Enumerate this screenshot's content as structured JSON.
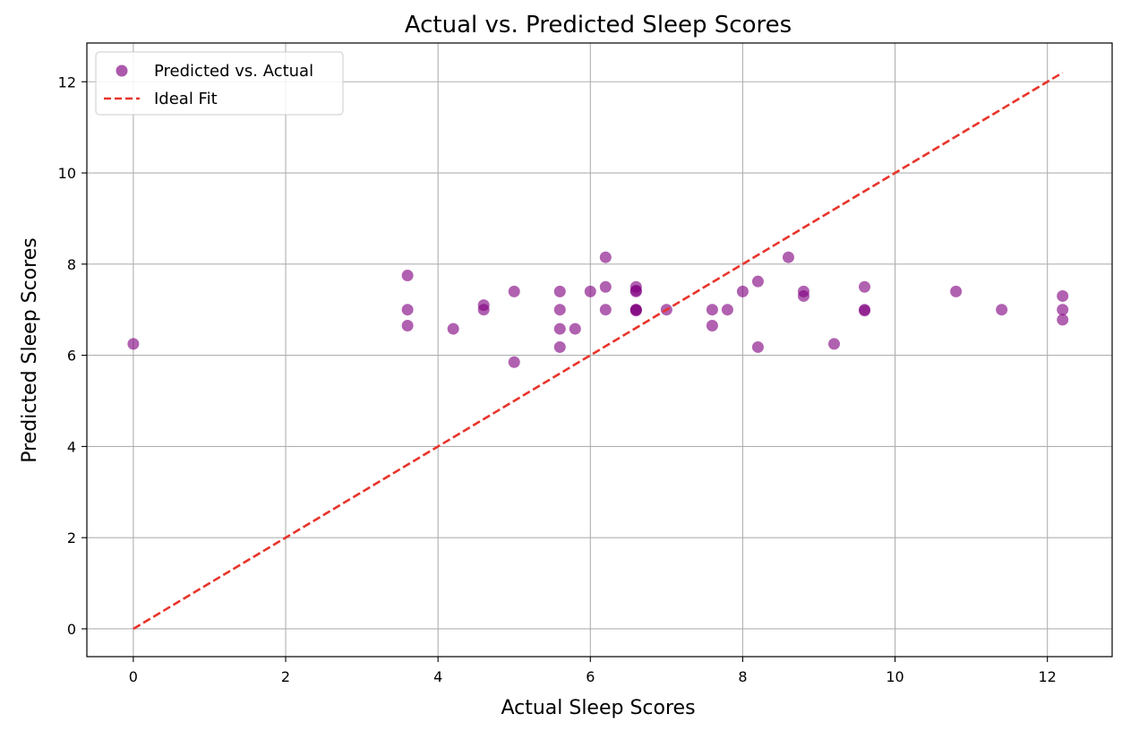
{
  "chart_data": {
    "type": "scatter",
    "title": "Actual vs. Predicted Sleep Scores",
    "xlabel": "Actual Sleep Scores",
    "ylabel": "Predicted Sleep Scores",
    "xlim": [
      -0.61,
      12.85
    ],
    "ylim": [
      -0.61,
      12.85
    ],
    "xticks": [
      0,
      2,
      4,
      6,
      8,
      10,
      12
    ],
    "yticks": [
      0,
      2,
      4,
      6,
      8,
      10,
      12
    ],
    "grid": true,
    "legend_position": "top-left",
    "colors": {
      "scatter": "#800080",
      "ideal_line": "#e8342a",
      "grid": "#b0b0b0",
      "axes": "#000000"
    },
    "series": [
      {
        "name": "Predicted vs. Actual",
        "kind": "scatter",
        "points": [
          [
            0,
            6.25
          ],
          [
            3.6,
            7.75
          ],
          [
            3.6,
            7.0
          ],
          [
            3.6,
            6.65
          ],
          [
            4.2,
            6.58
          ],
          [
            4.6,
            7.1
          ],
          [
            4.6,
            7.0
          ],
          [
            5.0,
            7.4
          ],
          [
            5.0,
            5.85
          ],
          [
            5.6,
            7.4
          ],
          [
            5.6,
            7.0
          ],
          [
            5.6,
            6.58
          ],
          [
            5.6,
            6.18
          ],
          [
            5.8,
            6.58
          ],
          [
            6.0,
            7.4
          ],
          [
            6.2,
            8.15
          ],
          [
            6.2,
            7.5
          ],
          [
            6.2,
            7.0
          ],
          [
            6.6,
            7.5
          ],
          [
            6.6,
            7.4
          ],
          [
            6.6,
            7.42
          ],
          [
            6.6,
            7.0
          ],
          [
            6.6,
            7.0
          ],
          [
            6.6,
            6.98
          ],
          [
            7.0,
            7.0
          ],
          [
            7.6,
            7.0
          ],
          [
            7.6,
            6.65
          ],
          [
            7.8,
            7.0
          ],
          [
            8.0,
            7.4
          ],
          [
            8.2,
            7.62
          ],
          [
            8.2,
            6.18
          ],
          [
            8.6,
            8.15
          ],
          [
            8.8,
            7.4
          ],
          [
            8.8,
            7.3
          ],
          [
            9.2,
            6.25
          ],
          [
            9.6,
            7.5
          ],
          [
            9.6,
            7.0
          ],
          [
            9.6,
            6.98
          ],
          [
            10.8,
            7.4
          ],
          [
            11.4,
            7.0
          ],
          [
            12.2,
            7.3
          ],
          [
            12.2,
            7.0
          ],
          [
            12.2,
            6.78
          ]
        ]
      },
      {
        "name": "Ideal Fit",
        "kind": "line",
        "style": "dashed",
        "points": [
          [
            0,
            0
          ],
          [
            12.2,
            12.2
          ]
        ]
      }
    ]
  }
}
